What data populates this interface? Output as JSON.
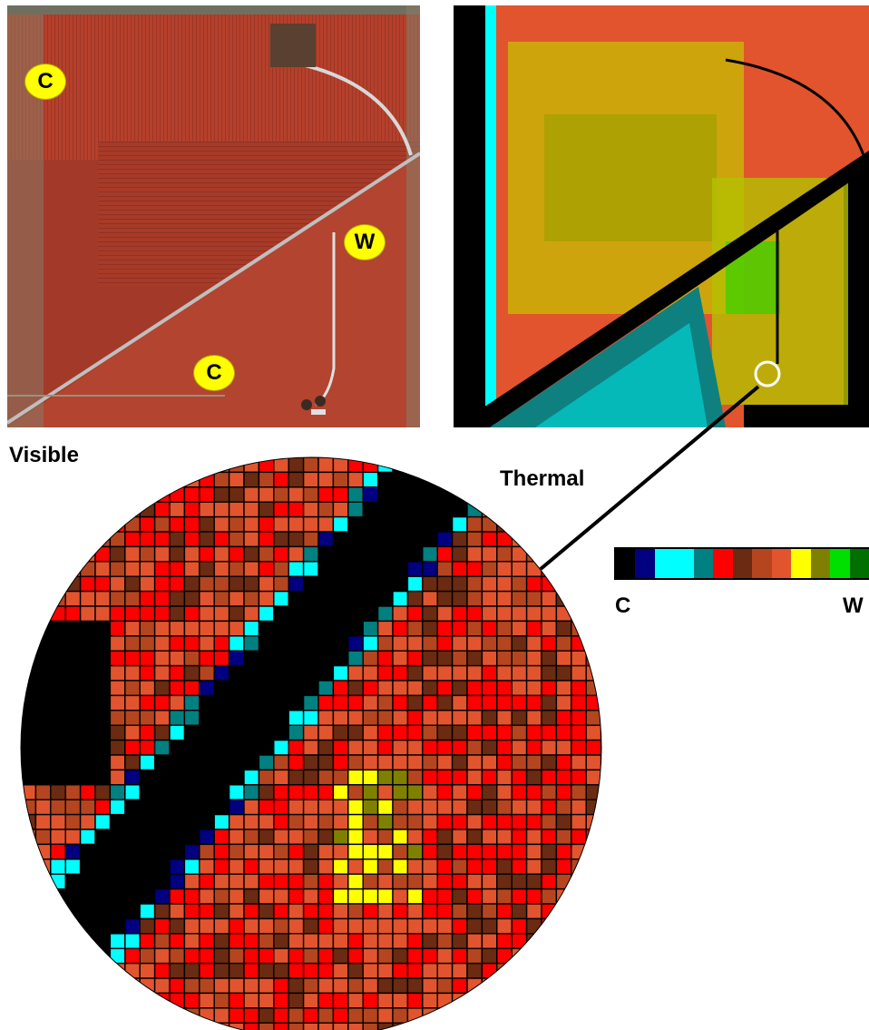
{
  "labels": {
    "visible": "Visible",
    "thermal": "Thermal"
  },
  "visible_image": {
    "markers": [
      {
        "text": "C"
      },
      {
        "text": "W"
      },
      {
        "text": "C"
      }
    ],
    "colors": {
      "field": "#b8402c",
      "field_dark": "#8e3324",
      "road": "#c9c9c9",
      "grass": "#8a8a6a"
    }
  },
  "thermal_image": {
    "colors": {
      "cold": "#000000",
      "warm": "#9fc000"
    }
  },
  "color_scale": {
    "colors": [
      "#000000",
      "#000080",
      "#00ffff",
      "#00ffff",
      "#008080",
      "#ff0000",
      "#6b2a12",
      "#b5451f",
      "#e2542e",
      "#ffff00",
      "#808000",
      "#00e000",
      "#007000"
    ],
    "low_label": "C",
    "high_label": "W"
  }
}
